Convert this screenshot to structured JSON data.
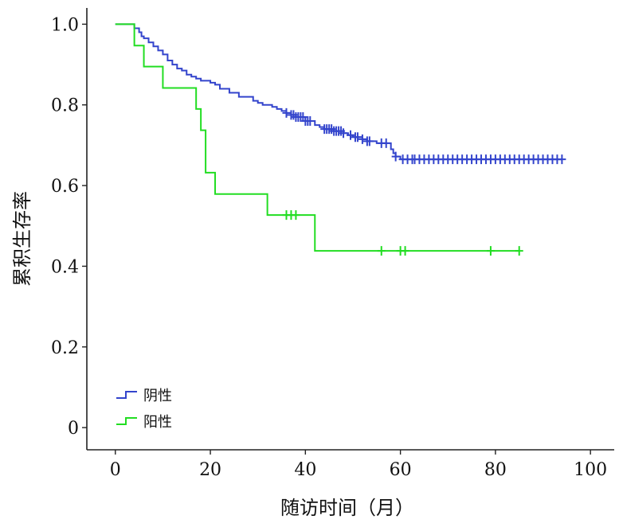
{
  "chart_data": {
    "type": "line",
    "subtype": "kaplan-meier-step",
    "xlabel": "随访时间（月）",
    "ylabel": "累积生存率",
    "xlim": [
      -6,
      105
    ],
    "ylim": [
      -0.055,
      1.06
    ],
    "x_ticks": [
      0,
      20,
      40,
      60,
      80,
      100
    ],
    "x_tick_labels": [
      "0",
      "20",
      "40",
      "60",
      "80",
      "100"
    ],
    "y_ticks": [
      0,
      0.2,
      0.4,
      0.6,
      0.8,
      1.0
    ],
    "y_tick_labels": [
      "0",
      "0.2",
      "0.4",
      "0.6",
      "0.8",
      "1.0"
    ],
    "grid": false,
    "legend_position": "bottom-left",
    "series": [
      {
        "name": "阴性",
        "color": "#3344cc",
        "steps": [
          [
            0,
            1.0
          ],
          [
            4,
            0.99
          ],
          [
            5,
            0.98
          ],
          [
            5.5,
            0.97
          ],
          [
            6,
            0.965
          ],
          [
            7,
            0.955
          ],
          [
            8,
            0.945
          ],
          [
            9,
            0.935
          ],
          [
            10,
            0.925
          ],
          [
            11,
            0.91
          ],
          [
            12,
            0.9
          ],
          [
            13,
            0.89
          ],
          [
            14,
            0.885
          ],
          [
            15,
            0.875
          ],
          [
            16,
            0.87
          ],
          [
            17,
            0.865
          ],
          [
            18,
            0.86
          ],
          [
            20,
            0.855
          ],
          [
            21,
            0.85
          ],
          [
            22,
            0.84
          ],
          [
            24,
            0.83
          ],
          [
            26,
            0.82
          ],
          [
            29,
            0.81
          ],
          [
            30,
            0.805
          ],
          [
            31,
            0.8
          ],
          [
            33,
            0.795
          ],
          [
            34,
            0.79
          ],
          [
            35,
            0.785
          ],
          [
            36,
            0.78
          ],
          [
            37,
            0.775
          ],
          [
            38,
            0.77
          ],
          [
            40,
            0.76
          ],
          [
            42,
            0.75
          ],
          [
            43,
            0.745
          ],
          [
            44,
            0.74
          ],
          [
            46,
            0.735
          ],
          [
            48,
            0.73
          ],
          [
            49,
            0.725
          ],
          [
            50,
            0.72
          ],
          [
            52,
            0.715
          ],
          [
            53,
            0.71
          ],
          [
            55,
            0.705
          ],
          [
            58,
            0.69
          ],
          [
            58.5,
            0.68
          ],
          [
            59,
            0.672
          ],
          [
            60,
            0.665
          ],
          [
            94,
            0.665
          ]
        ],
        "censor_x": [
          36,
          37,
          37.5,
          38,
          38.5,
          39,
          39.5,
          40,
          40.5,
          41,
          44,
          44.5,
          45,
          45.5,
          46,
          46.5,
          47,
          47.5,
          48,
          49.5,
          50.5,
          51,
          52,
          53,
          53.5,
          56,
          57,
          59,
          60.5,
          61.5,
          62.5,
          63,
          64,
          65,
          66,
          67,
          68,
          69,
          70,
          71,
          72,
          73,
          74,
          75,
          76,
          77,
          78,
          79,
          80,
          81,
          82,
          83,
          84,
          85,
          86,
          87,
          88,
          89,
          90,
          91,
          92,
          93,
          94
        ]
      },
      {
        "name": "阳性",
        "color": "#22dd22",
        "steps": [
          [
            0,
            1.0
          ],
          [
            4,
            0.947
          ],
          [
            6,
            0.895
          ],
          [
            10,
            0.842
          ],
          [
            17,
            0.79
          ],
          [
            18,
            0.737
          ],
          [
            19,
            0.632
          ],
          [
            21,
            0.579
          ],
          [
            32,
            0.527
          ],
          [
            42,
            0.438
          ],
          [
            85,
            0.438
          ]
        ],
        "censor_x": [
          36,
          37,
          38,
          56,
          60,
          61,
          79,
          85
        ]
      }
    ]
  }
}
